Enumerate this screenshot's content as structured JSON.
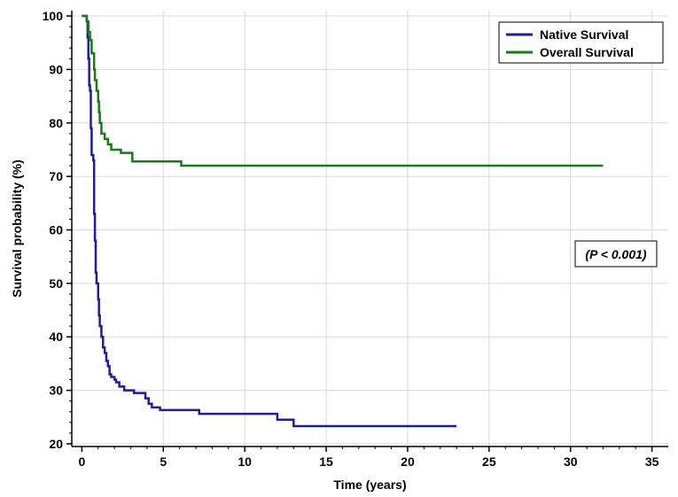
{
  "chart_data": {
    "type": "line",
    "xlabel": "Time (years)",
    "ylabel": "Survival probability (%)",
    "xlim": [
      -1,
      36
    ],
    "ylim": [
      19,
      101
    ],
    "xticks": [
      0,
      5,
      10,
      15,
      20,
      25,
      30,
      35
    ],
    "yticks": [
      20,
      30,
      40,
      50,
      60,
      70,
      80,
      90,
      100
    ],
    "xtick_labels": [
      "0",
      "5",
      "10",
      "15",
      "20",
      "25",
      "30",
      "35"
    ],
    "ytick_labels": [
      "20",
      "30",
      "40",
      "50",
      "60",
      "70",
      "80",
      "90",
      "100"
    ],
    "grid": true,
    "legend_position": "top-right",
    "annotation": "(P < 0.001)",
    "series": [
      {
        "name": "Native Survival",
        "color": "#1f1f8f",
        "step": true,
        "x": [
          0,
          0.3,
          0.35,
          0.4,
          0.45,
          0.5,
          0.55,
          0.6,
          0.7,
          0.75,
          0.8,
          0.85,
          0.9,
          1.0,
          1.05,
          1.1,
          1.2,
          1.3,
          1.4,
          1.5,
          1.6,
          1.7,
          1.8,
          2.0,
          2.1,
          2.3,
          2.6,
          3.2,
          3.9,
          4.1,
          4.3,
          4.8,
          7.2,
          12.0,
          13.0,
          23.0
        ],
        "y": [
          100,
          99,
          96,
          92,
          87,
          86,
          79,
          74,
          73,
          63,
          58,
          52,
          50,
          47,
          44,
          42,
          40,
          38,
          37,
          35.5,
          34.5,
          33,
          32.5,
          32,
          31.5,
          30.7,
          30,
          29.5,
          28.5,
          27.5,
          26.8,
          26.3,
          25.6,
          24.5,
          23.3,
          23.3
        ]
      },
      {
        "name": "Overall Survival",
        "color": "#1a7a1a",
        "step": true,
        "x": [
          0,
          0.3,
          0.4,
          0.5,
          0.6,
          0.75,
          0.8,
          0.9,
          1.0,
          1.05,
          1.1,
          1.2,
          1.4,
          1.6,
          1.8,
          2.4,
          3.1,
          5.9,
          6.1,
          32.0
        ],
        "y": [
          100,
          99,
          97,
          95.5,
          93,
          90,
          88,
          86,
          84,
          82,
          80,
          78,
          77,
          76,
          75,
          74.4,
          72.8,
          72.8,
          72,
          72
        ]
      }
    ]
  }
}
